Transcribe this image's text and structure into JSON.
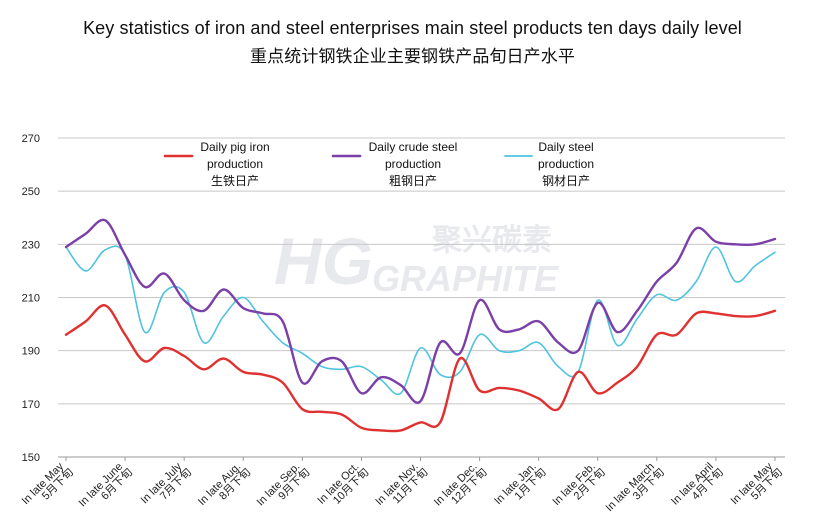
{
  "chart_data": {
    "type": "line",
    "title": "Key statistics of iron and steel enterprises main steel products ten days daily level",
    "subtitle": "重点统计钢铁企业主要钢铁产品旬日产水平",
    "ylim": [
      150,
      270
    ],
    "yticks": [
      150,
      170,
      190,
      210,
      230,
      250,
      270
    ],
    "grid": true,
    "legend_placement": "top",
    "xtick_labels": [
      {
        "en": "In late May",
        "cn": "5月下旬"
      },
      {
        "en": "In late June",
        "cn": "6月下旬"
      },
      {
        "en": "In late July",
        "cn": "7月下旬"
      },
      {
        "en": "In late Aug.",
        "cn": "8月下旬"
      },
      {
        "en": "In late Sep.",
        "cn": "9月下旬"
      },
      {
        "en": "In late Oct.",
        "cn": "10月下旬"
      },
      {
        "en": "In late Nov.",
        "cn": "11月下旬"
      },
      {
        "en": "In late Dec.",
        "cn": "12月下旬"
      },
      {
        "en": "In late Jan.",
        "cn": "1月下旬"
      },
      {
        "en": "In late Feb.",
        "cn": "2月下旬"
      },
      {
        "en": "In late March",
        "cn": "3月下旬"
      },
      {
        "en": "In late April",
        "cn": "4月下旬"
      },
      {
        "en": "In late May",
        "cn": "5月下旬"
      }
    ],
    "x": [
      0,
      0.333,
      0.667,
      1,
      1.333,
      1.667,
      2,
      2.333,
      2.667,
      3,
      3.333,
      3.667,
      4,
      4.333,
      4.667,
      5,
      5.333,
      5.667,
      6,
      6.333,
      6.667,
      7,
      7.333,
      7.667,
      8,
      8.333,
      8.667,
      9,
      9.333,
      9.667,
      10,
      10.333,
      10.667,
      11,
      11.333,
      11.667,
      12
    ],
    "series": [
      {
        "name": "Daily pig iron production",
        "name_cn": "生铁日产",
        "color": "#e03131",
        "values": [
          196,
          201,
          207,
          196,
          186,
          191,
          188,
          183,
          187,
          182,
          181,
          178,
          168,
          167,
          166,
          161,
          160,
          160,
          163,
          163,
          187,
          175,
          176,
          175,
          172,
          168,
          182,
          174,
          178,
          184,
          196,
          196,
          204,
          204,
          203,
          203,
          205
        ]
      },
      {
        "name": "Daily crude steel production",
        "name_cn": "粗钢日产",
        "color": "#7b3fa8",
        "values": [
          229,
          234,
          239,
          226,
          214,
          219,
          209,
          205,
          213,
          206,
          204,
          201,
          178,
          186,
          186,
          174,
          180,
          177,
          171,
          193,
          189,
          209,
          198,
          198,
          201,
          193,
          190,
          208,
          197,
          205,
          216,
          223,
          236,
          231,
          230,
          230,
          232
        ]
      },
      {
        "name": "Daily steel production",
        "name_cn": "钢材日产",
        "color": "#4fc3df",
        "values": [
          229,
          220,
          228,
          226,
          197,
          212,
          212,
          193,
          203,
          210,
          201,
          193,
          189,
          184,
          183,
          184,
          179,
          174,
          191,
          181,
          182,
          196,
          190,
          190,
          193,
          184,
          182,
          209,
          192,
          202,
          211,
          209,
          216,
          229,
          216,
          222,
          227
        ]
      }
    ]
  },
  "watermark": {
    "brand": "HG",
    "text_cn": "聚兴碳素",
    "text_en": "GRAPHITE"
  }
}
